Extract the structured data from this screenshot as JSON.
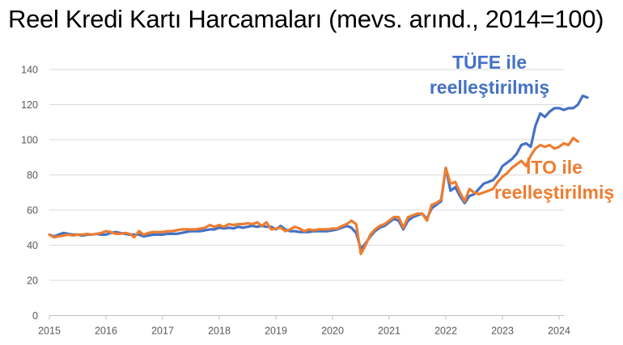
{
  "chart_data": {
    "type": "line",
    "title": "Reel Kredi Kartı Harcamaları (mevs. arınd., 2014=100)",
    "xlabel": "",
    "ylabel": "",
    "ylim": [
      0,
      140
    ],
    "yticks": [
      0,
      20,
      40,
      60,
      80,
      100,
      120,
      140
    ],
    "xticks": [
      "2015",
      "2016",
      "2017",
      "2018",
      "2019",
      "2020",
      "2021",
      "2022",
      "2023",
      "2024"
    ],
    "grid": true,
    "legend": "inline annotations",
    "frequency": "monthly",
    "start": "2015-01",
    "series": [
      {
        "name": "TÜFE ile reelleştirilmiş",
        "color": "#4472C4",
        "values": [
          46,
          45,
          46,
          47,
          46.5,
          46,
          46,
          45.5,
          46,
          46,
          46.5,
          46,
          46,
          47,
          47.5,
          47,
          46.5,
          46,
          46,
          46,
          45,
          45.5,
          46,
          46,
          46,
          46.5,
          46.5,
          46.5,
          47,
          47.5,
          48,
          48,
          48,
          48.5,
          49,
          49,
          50,
          49.5,
          50,
          49.5,
          50.5,
          50,
          50.5,
          51,
          50.5,
          51,
          50.5,
          50.5,
          49,
          51,
          49,
          48,
          48,
          47.5,
          47.5,
          47.5,
          48,
          48,
          48,
          48,
          48.5,
          49,
          50,
          51,
          50,
          47,
          38,
          41,
          45,
          48,
          50,
          51,
          53,
          55,
          54,
          49,
          54,
          56,
          57,
          58,
          55,
          61,
          63,
          65,
          84,
          71,
          73,
          68,
          64,
          68,
          69,
          72,
          75,
          76,
          77,
          80,
          85,
          87,
          89,
          92,
          97,
          98,
          96,
          108,
          115,
          113,
          116,
          118,
          118,
          117,
          118,
          118,
          120,
          125,
          124
        ]
      },
      {
        "name": "İTO ile reelleştirilmiş",
        "color": "#ED7D31",
        "values": [
          46,
          44.5,
          45,
          45.5,
          46,
          45.5,
          46,
          46,
          46.5,
          46,
          46.5,
          47,
          48,
          47.5,
          46.5,
          46.5,
          47,
          46.5,
          44.5,
          48,
          46,
          47,
          47.5,
          47.5,
          47.5,
          48,
          48,
          48.5,
          49,
          49,
          49,
          49,
          49.5,
          50,
          51.5,
          50.5,
          51.5,
          50.5,
          52,
          51.5,
          52,
          52,
          52.5,
          52,
          53,
          51,
          53,
          49,
          49.5,
          50,
          48,
          49,
          50.5,
          49.5,
          48,
          49,
          48.5,
          49,
          49,
          49,
          49.5,
          49.5,
          51,
          52,
          54,
          52,
          35,
          40,
          46,
          49,
          51,
          52,
          54,
          56,
          56,
          50,
          56,
          57,
          58,
          58,
          54,
          63,
          64,
          66,
          84,
          75,
          76,
          70,
          65,
          72,
          70,
          69,
          70,
          71,
          72,
          76,
          79,
          81,
          84,
          86,
          88,
          85,
          91,
          95,
          97,
          96,
          97,
          95,
          96,
          98,
          97,
          101,
          99
        ]
      }
    ]
  },
  "header": {
    "title": "Reel Kredi Kartı Harcamaları (mevs. arınd., 2014=100)"
  },
  "annotations": {
    "blue_line1": "TÜFE ile",
    "blue_line2": "reelleştirilmiş",
    "orange_line1": "İTO ile",
    "orange_line2": "reelleştirilmiş"
  }
}
